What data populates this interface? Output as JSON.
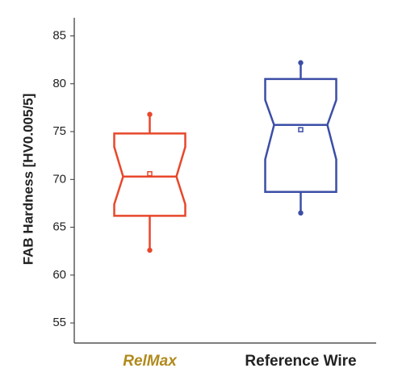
{
  "chart_data": {
    "type": "box",
    "y_label": "FAB Hardness [HV0.005/5]",
    "categories": [
      "RelMax",
      "Reference Wire"
    ],
    "boxes": [
      {
        "min": 62.6,
        "q1": 66.2,
        "notch_low": 67.4,
        "median": 70.3,
        "notch_high": 73.4,
        "q3": 74.8,
        "max": 76.8,
        "mean": 70.6,
        "color": "#e8472b"
      },
      {
        "min": 66.5,
        "q1": 68.7,
        "notch_low": 72.1,
        "median": 75.7,
        "notch_high": 78.3,
        "q3": 80.5,
        "max": 82.2,
        "mean": 75.2,
        "color": "#3b4ea6"
      }
    ],
    "ylim": [
      52.9,
      86.9
    ],
    "yticks": [
      55,
      60,
      65,
      70,
      75,
      80,
      85
    ]
  }
}
